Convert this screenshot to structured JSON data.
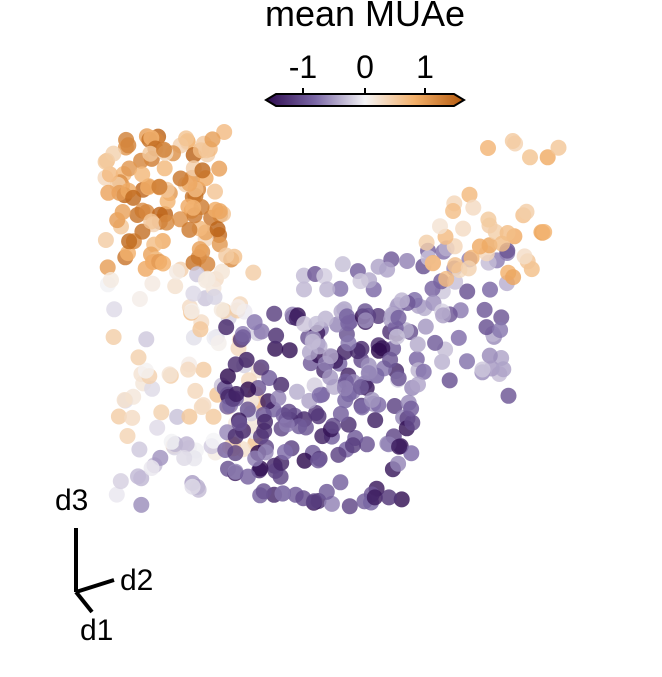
{
  "chart_data": {
    "type": "scatter",
    "title": "",
    "colorbar": {
      "label": "mean MUAe",
      "ticks": [
        "-1",
        "0",
        "1"
      ],
      "range": [
        -1.6,
        1.6
      ],
      "colors": [
        "#2d0a4e",
        "#7b68a6",
        "#f4f4f6",
        "#f3b06a",
        "#b3580c"
      ]
    },
    "axes_indicator": {
      "labels": [
        "d3",
        "d2",
        "d1"
      ]
    },
    "grid": false,
    "legend": "none",
    "clusters": [
      {
        "name": "",
        "x_range": [
          -1.0,
          -0.45
        ],
        "y_range": [
          0.35,
          1.0
        ],
        "value_range": [
          0.3,
          1.5
        ],
        "n": 120
      },
      {
        "name": "",
        "x_range": [
          -1.0,
          -0.35
        ],
        "y_range": [
          -0.5,
          0.35
        ],
        "value_range": [
          -0.3,
          0.6
        ],
        "n": 90
      },
      {
        "name": "",
        "x_range": [
          -0.5,
          0.3
        ],
        "y_range": [
          -0.75,
          0.15
        ],
        "value_range": [
          -1.6,
          -0.6
        ],
        "n": 160
      },
      {
        "name": "",
        "x_range": [
          -0.2,
          0.7
        ],
        "y_range": [
          -0.3,
          0.45
        ],
        "value_range": [
          -1.0,
          -0.2
        ],
        "n": 120
      },
      {
        "name": "",
        "x_range": [
          0.35,
          0.85
        ],
        "y_range": [
          0.3,
          0.7
        ],
        "value_range": [
          0.2,
          0.9
        ],
        "n": 35
      },
      {
        "name": "",
        "x_range": [
          0.55,
          1.0
        ],
        "y_range": [
          0.85,
          0.95
        ],
        "value_range": [
          0.3,
          1.0
        ],
        "n": 6
      },
      {
        "name": "",
        "x_range": [
          -1.0,
          -0.6
        ],
        "y_range": [
          -0.75,
          -0.45
        ],
        "value_range": [
          -0.6,
          0.0
        ],
        "n": 18
      }
    ],
    "xlim": [
      -1,
      1
    ],
    "ylim": [
      -1,
      1
    ]
  }
}
